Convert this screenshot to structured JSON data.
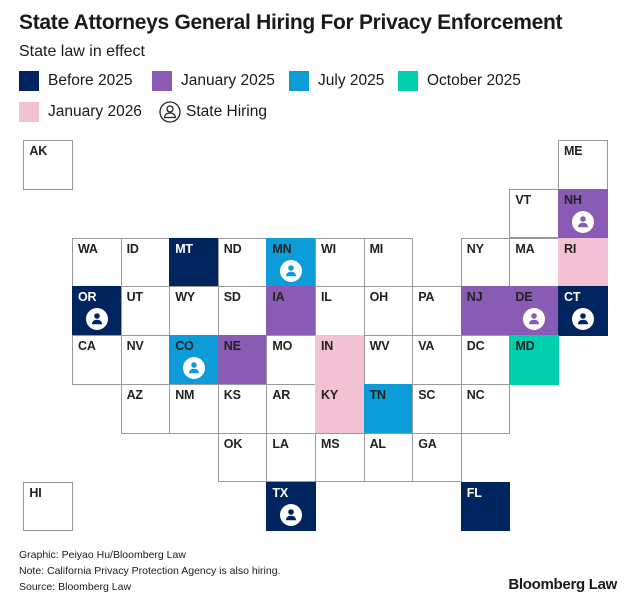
{
  "header": {
    "title": "State Attorneys General Hiring For Privacy Enforcement",
    "subtitle": "State law in effect"
  },
  "legend": {
    "items": [
      {
        "key": "before_2025",
        "label": "Before 2025",
        "color": "#00245e"
      },
      {
        "key": "jan_2025",
        "label": "January 2025",
        "color": "#8a5bb5"
      },
      {
        "key": "jul_2025",
        "label": "July 2025",
        "color": "#0d9cda"
      },
      {
        "key": "oct_2025",
        "label": "October 2025",
        "color": "#00cfae"
      },
      {
        "key": "jan_2026",
        "label": "January 2026",
        "color": "#f2c2d4"
      }
    ],
    "hiring_label": "State Hiring",
    "hiring_icon": "person-circle-icon"
  },
  "map": {
    "states": [
      {
        "abbr": "AK",
        "row": 0,
        "col": -1,
        "status": null,
        "hiring": false
      },
      {
        "abbr": "ME",
        "row": 0,
        "col": 10,
        "status": null,
        "hiring": false
      },
      {
        "abbr": "VT",
        "row": 1,
        "col": 9,
        "status": null,
        "hiring": false
      },
      {
        "abbr": "NH",
        "row": 1,
        "col": 10,
        "status": "jan_2025",
        "hiring": true
      },
      {
        "abbr": "WA",
        "row": 2,
        "col": 0,
        "status": null,
        "hiring": false
      },
      {
        "abbr": "ID",
        "row": 2,
        "col": 1,
        "status": null,
        "hiring": false
      },
      {
        "abbr": "MT",
        "row": 2,
        "col": 2,
        "status": "before_2025",
        "hiring": false
      },
      {
        "abbr": "ND",
        "row": 2,
        "col": 3,
        "status": null,
        "hiring": false
      },
      {
        "abbr": "MN",
        "row": 2,
        "col": 4,
        "status": "jul_2025",
        "hiring": true
      },
      {
        "abbr": "WI",
        "row": 2,
        "col": 5,
        "status": null,
        "hiring": false
      },
      {
        "abbr": "MI",
        "row": 2,
        "col": 6,
        "status": null,
        "hiring": false
      },
      {
        "abbr": "NY",
        "row": 2,
        "col": 8,
        "status": null,
        "hiring": false
      },
      {
        "abbr": "MA",
        "row": 2,
        "col": 9,
        "status": null,
        "hiring": false
      },
      {
        "abbr": "RI",
        "row": 2,
        "col": 10,
        "status": "jan_2026",
        "hiring": false
      },
      {
        "abbr": "OR",
        "row": 3,
        "col": 0,
        "status": "before_2025",
        "hiring": true
      },
      {
        "abbr": "UT",
        "row": 3,
        "col": 1,
        "status": null,
        "hiring": false
      },
      {
        "abbr": "WY",
        "row": 3,
        "col": 2,
        "status": null,
        "hiring": false
      },
      {
        "abbr": "SD",
        "row": 3,
        "col": 3,
        "status": null,
        "hiring": false
      },
      {
        "abbr": "IA",
        "row": 3,
        "col": 4,
        "status": "jan_2025",
        "hiring": false
      },
      {
        "abbr": "IL",
        "row": 3,
        "col": 5,
        "status": null,
        "hiring": false
      },
      {
        "abbr": "OH",
        "row": 3,
        "col": 6,
        "status": null,
        "hiring": false
      },
      {
        "abbr": "PA",
        "row": 3,
        "col": 7,
        "status": null,
        "hiring": false
      },
      {
        "abbr": "NJ",
        "row": 3,
        "col": 8,
        "status": "jan_2025",
        "hiring": false
      },
      {
        "abbr": "DE",
        "row": 3,
        "col": 9,
        "status": "jan_2025",
        "hiring": true
      },
      {
        "abbr": "CT",
        "row": 3,
        "col": 10,
        "status": "before_2025",
        "hiring": true
      },
      {
        "abbr": "CA",
        "row": 4,
        "col": 0,
        "status": null,
        "hiring": false
      },
      {
        "abbr": "NV",
        "row": 4,
        "col": 1,
        "status": null,
        "hiring": false
      },
      {
        "abbr": "CO",
        "row": 4,
        "col": 2,
        "status": "jul_2025",
        "hiring": true
      },
      {
        "abbr": "NE",
        "row": 4,
        "col": 3,
        "status": "jan_2025",
        "hiring": false
      },
      {
        "abbr": "MO",
        "row": 4,
        "col": 4,
        "status": null,
        "hiring": false
      },
      {
        "abbr": "IN",
        "row": 4,
        "col": 5,
        "status": "jan_2026",
        "hiring": false
      },
      {
        "abbr": "WV",
        "row": 4,
        "col": 6,
        "status": null,
        "hiring": false
      },
      {
        "abbr": "VA",
        "row": 4,
        "col": 7,
        "status": null,
        "hiring": false
      },
      {
        "abbr": "DC",
        "row": 4,
        "col": 8,
        "status": null,
        "hiring": false
      },
      {
        "abbr": "MD",
        "row": 4,
        "col": 9,
        "status": "oct_2025",
        "hiring": false
      },
      {
        "abbr": "AZ",
        "row": 5,
        "col": 1,
        "status": null,
        "hiring": false
      },
      {
        "abbr": "NM",
        "row": 5,
        "col": 2,
        "status": null,
        "hiring": false
      },
      {
        "abbr": "KS",
        "row": 5,
        "col": 3,
        "status": null,
        "hiring": false
      },
      {
        "abbr": "AR",
        "row": 5,
        "col": 4,
        "status": null,
        "hiring": false
      },
      {
        "abbr": "KY",
        "row": 5,
        "col": 5,
        "status": "jan_2026",
        "hiring": false
      },
      {
        "abbr": "TN",
        "row": 5,
        "col": 6,
        "status": "jul_2025",
        "hiring": false
      },
      {
        "abbr": "SC",
        "row": 5,
        "col": 7,
        "status": null,
        "hiring": false
      },
      {
        "abbr": "NC",
        "row": 5,
        "col": 8,
        "status": null,
        "hiring": false
      },
      {
        "abbr": "OK",
        "row": 6,
        "col": 3,
        "status": null,
        "hiring": false
      },
      {
        "abbr": "LA",
        "row": 6,
        "col": 4,
        "status": null,
        "hiring": false
      },
      {
        "abbr": "MS",
        "row": 6,
        "col": 5,
        "status": null,
        "hiring": false
      },
      {
        "abbr": "AL",
        "row": 6,
        "col": 6,
        "status": null,
        "hiring": false
      },
      {
        "abbr": "GA",
        "row": 6,
        "col": 7,
        "status": null,
        "hiring": false
      },
      {
        "abbr": "HI",
        "row": 7,
        "col": -1,
        "status": null,
        "hiring": false
      },
      {
        "abbr": "TX",
        "row": 7,
        "col": 4,
        "status": "before_2025",
        "hiring": true
      },
      {
        "abbr": "FL",
        "row": 7,
        "col": 8,
        "status": "before_2025",
        "hiring": false
      }
    ]
  },
  "footer": {
    "graphic": "Graphic: Peiyao Hu/Bloomberg Law",
    "note": "Note: California Privacy Protection Agency is also hiring.",
    "source": "Source: Bloomberg Law",
    "brand": "Bloomberg Law"
  }
}
